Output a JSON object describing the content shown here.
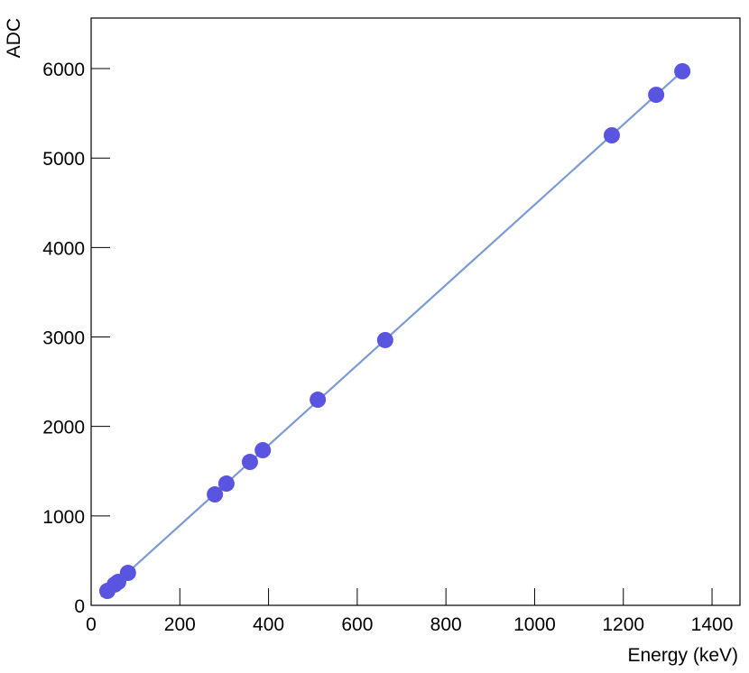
{
  "chart_data": {
    "type": "scatter",
    "xlabel": "Energy (keV)",
    "ylabel": "ADC",
    "xlim": [
      0,
      1463
    ],
    "ylim": [
      0,
      6565
    ],
    "xticks": [
      0,
      200,
      400,
      600,
      800,
      1000,
      1200,
      1400
    ],
    "yticks": [
      0,
      1000,
      2000,
      3000,
      4000,
      5000,
      6000
    ],
    "series": [
      {
        "type": "scatter",
        "color": "#5a55e0",
        "x": [
          36.6,
          53,
          61,
          83,
          279,
          305,
          358,
          387,
          511,
          663,
          1174,
          1274,
          1333
        ],
        "values": [
          161,
          232,
          262,
          363,
          1240,
          1361,
          1603,
          1734,
          2299,
          2965,
          5254,
          5707,
          5970
        ]
      },
      {
        "type": "line",
        "color": "#7a9bd4",
        "x": [
          22,
          1347
        ],
        "values": [
          96,
          6033
        ]
      }
    ]
  }
}
